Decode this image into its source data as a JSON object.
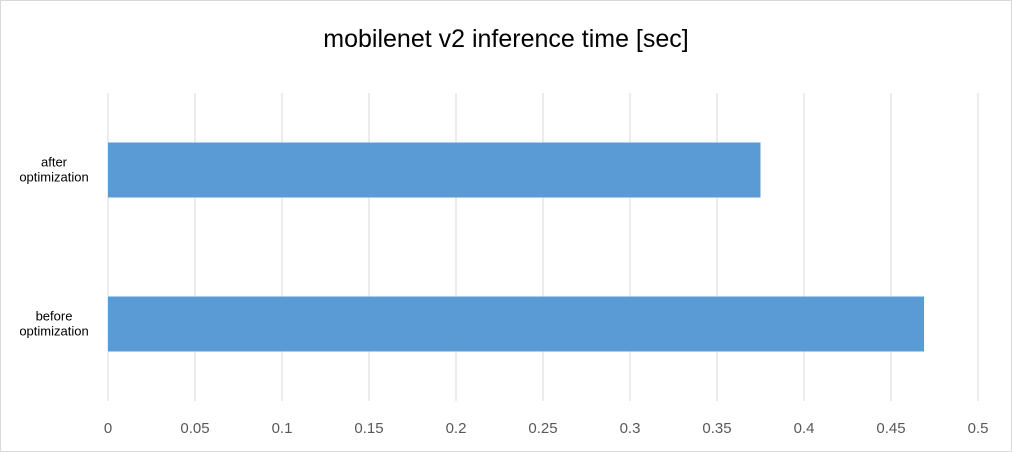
{
  "chart_data": {
    "type": "bar",
    "orientation": "horizontal",
    "title": "mobilenet v2 inference time [sec]",
    "xlabel": "",
    "ylabel": "",
    "categories": [
      [
        "after",
        "optimization"
      ],
      [
        "before",
        "optimization"
      ]
    ],
    "values": [
      0.375,
      0.469
    ],
    "xlim": [
      0,
      0.5
    ],
    "xticks": [
      "0",
      "0.05",
      "0.1",
      "0.15",
      "0.2",
      "0.25",
      "0.3",
      "0.35",
      "0.4",
      "0.45",
      "0.5"
    ],
    "grid": "vertical",
    "legend": "none",
    "bar_color": "#5b9bd5",
    "grid_color": "#d9d9d9"
  }
}
